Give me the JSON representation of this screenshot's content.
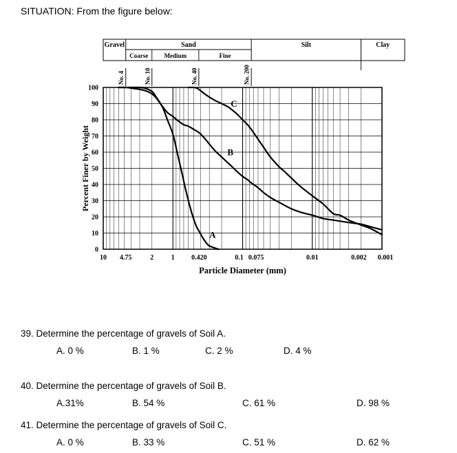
{
  "page": {
    "situation_label": "SITUATION: From the figure below:"
  },
  "chart_data": {
    "type": "line",
    "title": "",
    "xlabel": "Particle Diameter (mm)",
    "ylabel": "Percent Finer by Weight",
    "x_scale": "log",
    "x_range": [
      10,
      0.001
    ],
    "y_range": [
      0,
      100
    ],
    "grid": "on",
    "y_ticks": [
      0,
      10,
      20,
      30,
      40,
      50,
      60,
      70,
      80,
      90,
      100
    ],
    "x_ticks": [
      {
        "v": 10,
        "label": "10"
      },
      {
        "v": 4.75,
        "label": "4.75"
      },
      {
        "v": 2,
        "label": "2"
      },
      {
        "v": 1,
        "label": "1"
      },
      {
        "v": 0.42,
        "label": "0.420"
      },
      {
        "v": 0.1,
        "label": "0.1",
        "dx": -5
      },
      {
        "v": 0.075,
        "label": "0.075",
        "dx": 7
      },
      {
        "v": 0.01,
        "label": "0.01"
      },
      {
        "v": 0.002,
        "label": "0.002",
        "dx": -3
      },
      {
        "v": 0.001,
        "label": "0.001",
        "dx": 5
      }
    ],
    "size_fractions": [
      {
        "label": "Gravel",
        "from": 10,
        "to": 4.75
      },
      {
        "label": "Sand",
        "from": 4.75,
        "to": 0.075,
        "sub": [
          {
            "label": "Coarse",
            "from": 4.75,
            "to": 2
          },
          {
            "label": "Medium",
            "from": 2,
            "to": 0.425
          },
          {
            "label": "Fine",
            "from": 0.425,
            "to": 0.075
          }
        ]
      },
      {
        "label": "Silt",
        "from": 0.075,
        "to": 0.002
      },
      {
        "label": "Clay",
        "from": 0.002,
        "to": null
      }
    ],
    "sieves": [
      {
        "label": "No. 4",
        "d": 4.75
      },
      {
        "label": "No. 10",
        "d": 2
      },
      {
        "label": "No. 40",
        "d": 0.425
      },
      {
        "label": "No. 200",
        "d": 0.075
      }
    ],
    "series": [
      {
        "name": "A",
        "label_at": [
          0.27,
          7
        ],
        "points": [
          [
            6,
            100
          ],
          [
            4.75,
            100
          ],
          [
            3,
            100
          ],
          [
            2.5,
            99.5
          ],
          [
            2,
            97.5
          ],
          [
            1.7,
            93.5
          ],
          [
            1.4,
            87.5
          ],
          [
            1.2,
            80
          ],
          [
            1,
            71
          ],
          [
            0.85,
            58
          ],
          [
            0.75,
            48
          ],
          [
            0.65,
            36
          ],
          [
            0.55,
            24
          ],
          [
            0.47,
            15
          ],
          [
            0.42,
            11
          ],
          [
            0.36,
            6
          ],
          [
            0.31,
            2.5
          ],
          [
            0.26,
            1
          ],
          [
            0.22,
            0
          ]
        ]
      },
      {
        "name": "B",
        "label_at": [
          0.15,
          58
        ],
        "points": [
          [
            6,
            100
          ],
          [
            4.75,
            100
          ],
          [
            3.2,
            99
          ],
          [
            2.5,
            98
          ],
          [
            2,
            96
          ],
          [
            1.7,
            93
          ],
          [
            1.4,
            88
          ],
          [
            1.2,
            84.5
          ],
          [
            1,
            82
          ],
          [
            0.85,
            79.5
          ],
          [
            0.7,
            77
          ],
          [
            0.6,
            76
          ],
          [
            0.5,
            74
          ],
          [
            0.42,
            72
          ],
          [
            0.35,
            68.5
          ],
          [
            0.3,
            65
          ],
          [
            0.25,
            61
          ],
          [
            0.2,
            57
          ],
          [
            0.15,
            52
          ],
          [
            0.12,
            48
          ],
          [
            0.1,
            45
          ],
          [
            0.085,
            43
          ],
          [
            0.075,
            41
          ],
          [
            0.06,
            38
          ],
          [
            0.05,
            35
          ],
          [
            0.04,
            32
          ],
          [
            0.03,
            29
          ],
          [
            0.02,
            25
          ],
          [
            0.015,
            23
          ],
          [
            0.01,
            21
          ],
          [
            0.007,
            19
          ],
          [
            0.005,
            18
          ],
          [
            0.003,
            16.5
          ],
          [
            0.002,
            15.5
          ],
          [
            0.0015,
            14
          ],
          [
            0.001,
            12
          ]
        ]
      },
      {
        "name": "C",
        "label_at": [
          0.133,
          88
        ],
        "points": [
          [
            0.6,
            100
          ],
          [
            0.5,
            100
          ],
          [
            0.45,
            99.5
          ],
          [
            0.4,
            98
          ],
          [
            0.35,
            96
          ],
          [
            0.3,
            94
          ],
          [
            0.25,
            92
          ],
          [
            0.2,
            90
          ],
          [
            0.17,
            88.5
          ],
          [
            0.15,
            87
          ],
          [
            0.12,
            83.5
          ],
          [
            0.1,
            80
          ],
          [
            0.085,
            77
          ],
          [
            0.075,
            74
          ],
          [
            0.06,
            68
          ],
          [
            0.05,
            63
          ],
          [
            0.04,
            57
          ],
          [
            0.03,
            51
          ],
          [
            0.025,
            48
          ],
          [
            0.02,
            44
          ],
          [
            0.015,
            39
          ],
          [
            0.01,
            33
          ],
          [
            0.007,
            28
          ],
          [
            0.005,
            22
          ],
          [
            0.004,
            21
          ],
          [
            0.003,
            18
          ],
          [
            0.002,
            15
          ],
          [
            0.0015,
            13
          ],
          [
            0.001,
            9
          ]
        ]
      }
    ]
  },
  "questions": [
    {
      "text": "39. Determine the percentage of gravels of Soil A.",
      "options": [
        "A. 0 %",
        "B. 1 %",
        "C. 2 %",
        "D. 4 %"
      ]
    },
    {
      "text": "40. Determine the percentage of gravels of Soil B.",
      "options": [
        "A.31%",
        "B. 54 %",
        "C. 61 %",
        "D. 98 %"
      ]
    },
    {
      "text": "41. Determine the percentage of gravels of Soil C.",
      "options": [
        "A. 0 %",
        "B. 33 %",
        "C. 51 %",
        "D. 62 %"
      ]
    }
  ]
}
